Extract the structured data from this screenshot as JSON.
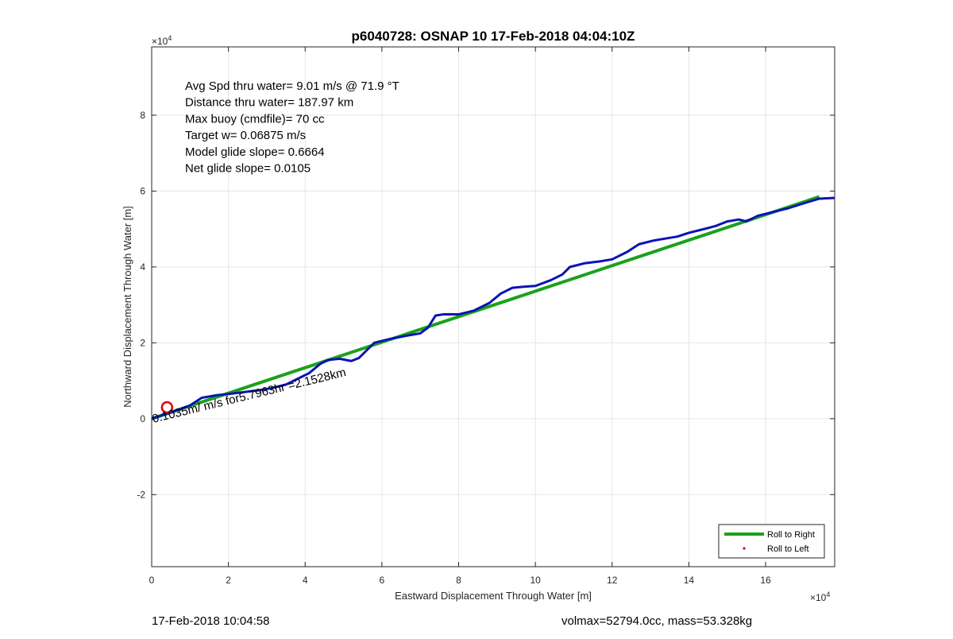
{
  "chart_data": {
    "type": "line",
    "title": "p6040728: OSNAP 10 17-Feb-2018 04:04:10Z",
    "xlabel": "Eastward Displacement Through Water [m]",
    "ylabel": "Northward Displacement Through Water [m]",
    "x_exponent_label": "×10",
    "x_exponent_power": "4",
    "y_exponent_label": "×10",
    "y_exponent_power": "4",
    "xlim": [
      0,
      17.8
    ],
    "ylim": [
      -3.9,
      9.8
    ],
    "axis_scale_note": "axis values in units of 1e4 m",
    "xticks": [
      0,
      2,
      4,
      6,
      8,
      10,
      12,
      14,
      16
    ],
    "yticks": [
      -2,
      0,
      2,
      4,
      6,
      8
    ],
    "grid": true,
    "legend_position": "bottom-right",
    "annotations": [
      "Avg Spd thru water=  9.01 m/s @  71.9 °T",
      "Distance thru water= 187.97 km",
      "Max buoy (cmdfile)= 70 cc",
      "Target w= 0.06875 m/s",
      "Model glide slope= 0.6664",
      "Net glide slope= 0.0105"
    ],
    "current_label": "0.1035m/ m/s for5.7963hr =2.1528km",
    "series": [
      {
        "name": "Roll to Right",
        "color": "#1aa21a",
        "x": [
          0,
          17.4
        ],
        "y": [
          0,
          5.85
        ]
      },
      {
        "color": "#0a14b4",
        "x": [
          0,
          0.3,
          0.6,
          1.0,
          1.3,
          1.7,
          2.0,
          2.4,
          2.8,
          3.1,
          3.5,
          3.8,
          4.1,
          4.4,
          4.6,
          4.9,
          5.2,
          5.4,
          5.6,
          5.8,
          6.2,
          6.6,
          7.0,
          7.2,
          7.4,
          7.6,
          8.0,
          8.4,
          8.8,
          9.1,
          9.4,
          9.7,
          10.0,
          10.4,
          10.7,
          10.9,
          11.3,
          11.7,
          12.0,
          12.4,
          12.7,
          13.1,
          13.4,
          13.7,
          14.0,
          14.4,
          14.7,
          15.0,
          15.3,
          15.5,
          15.8,
          16.2,
          16.6,
          17.0,
          17.4,
          17.8
        ],
        "y": [
          0.0,
          0.1,
          0.2,
          0.35,
          0.55,
          0.62,
          0.65,
          0.7,
          0.75,
          0.8,
          0.9,
          1.05,
          1.2,
          1.45,
          1.55,
          1.58,
          1.52,
          1.6,
          1.8,
          2.0,
          2.1,
          2.18,
          2.25,
          2.4,
          2.72,
          2.75,
          2.75,
          2.85,
          3.05,
          3.3,
          3.45,
          3.48,
          3.5,
          3.65,
          3.8,
          4.0,
          4.1,
          4.15,
          4.2,
          4.4,
          4.6,
          4.7,
          4.75,
          4.8,
          4.9,
          5.0,
          5.08,
          5.2,
          5.25,
          5.2,
          5.35,
          5.45,
          5.55,
          5.68,
          5.8,
          5.82
        ]
      },
      {
        "name": "Roll to Left",
        "color": "#dd0000",
        "x": [],
        "y": []
      }
    ]
  },
  "footer": {
    "left": "17-Feb-2018 10:04:58",
    "right": "volmax=52794.0cc, mass=53.328kg"
  }
}
